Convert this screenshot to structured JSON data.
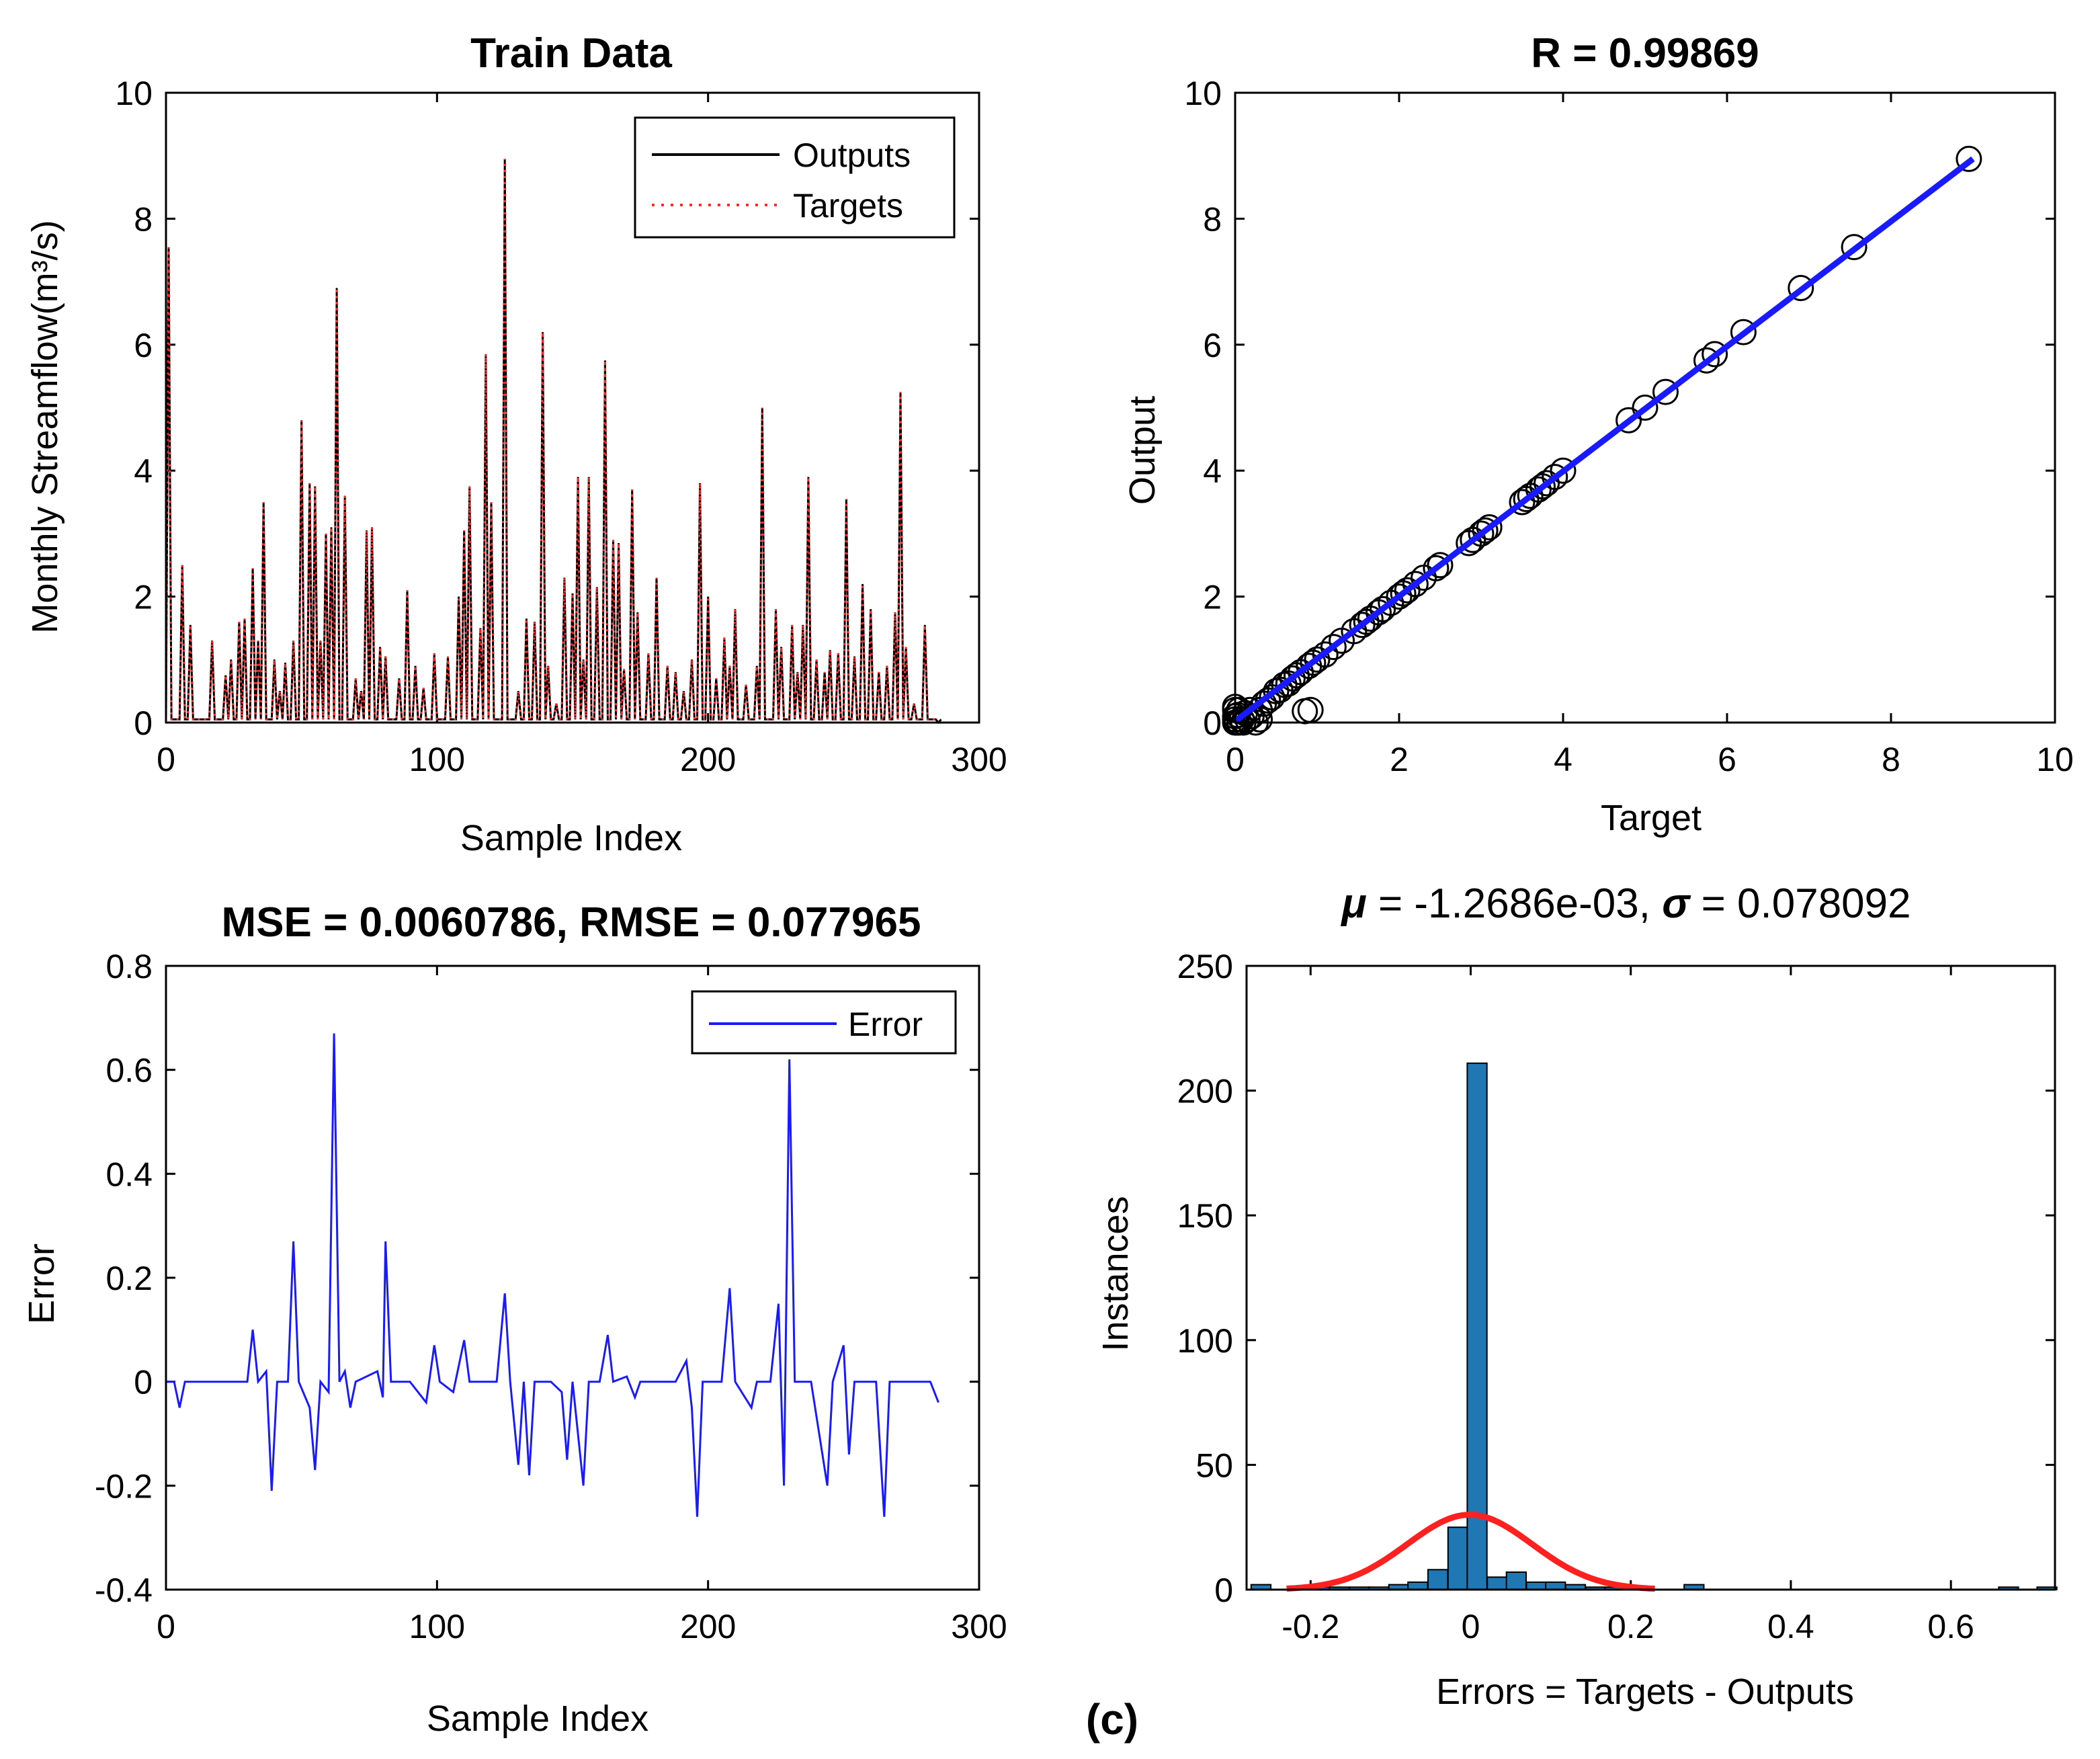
{
  "figure_label": "(c)",
  "chart_data": [
    {
      "id": "train_series",
      "type": "line",
      "title": "Train Data",
      "xlabel": "Sample Index",
      "ylabel": "Monthly Streamflow(m³/s)",
      "xlim": [
        0,
        300
      ],
      "ylim": [
        0,
        10
      ],
      "xticks": [
        0,
        100,
        200,
        300
      ],
      "yticks": [
        0,
        2,
        4,
        6,
        8,
        10
      ],
      "legend": {
        "position": "top-right",
        "entries": [
          "Outputs",
          "Targets"
        ]
      },
      "series": [
        {
          "name": "Outputs",
          "color": "#000000",
          "style": "solid"
        },
        {
          "name": "Targets",
          "color": "#ff2a2a",
          "style": "dotted"
        }
      ],
      "peaks": [
        [
          1,
          7.55
        ],
        [
          6,
          2.5
        ],
        [
          9,
          1.55
        ],
        [
          17,
          1.3
        ],
        [
          22,
          0.75
        ],
        [
          24,
          1.0
        ],
        [
          27,
          1.6
        ],
        [
          29,
          1.65
        ],
        [
          32,
          2.45
        ],
        [
          34,
          1.3
        ],
        [
          36,
          3.5
        ],
        [
          40,
          1.0
        ],
        [
          42,
          0.5
        ],
        [
          44,
          0.95
        ],
        [
          47,
          1.3
        ],
        [
          50,
          4.8
        ],
        [
          53,
          3.8
        ],
        [
          55,
          3.75
        ],
        [
          57,
          1.3
        ],
        [
          59,
          3.0
        ],
        [
          61,
          3.1
        ],
        [
          63,
          6.9
        ],
        [
          66,
          3.6
        ],
        [
          70,
          0.7
        ],
        [
          72,
          0.5
        ],
        [
          74,
          3.05
        ],
        [
          76,
          3.1
        ],
        [
          79,
          1.2
        ],
        [
          81,
          1.05
        ],
        [
          86,
          0.7
        ],
        [
          89,
          2.1
        ],
        [
          92,
          0.9
        ],
        [
          95,
          0.55
        ],
        [
          99,
          1.1
        ],
        [
          104,
          1.05
        ],
        [
          108,
          2.0
        ],
        [
          110,
          3.05
        ],
        [
          112,
          3.75
        ],
        [
          116,
          1.5
        ],
        [
          118,
          5.85
        ],
        [
          120,
          3.5
        ],
        [
          125,
          8.95
        ],
        [
          130,
          0.5
        ],
        [
          133,
          1.65
        ],
        [
          136,
          1.6
        ],
        [
          139,
          6.2
        ],
        [
          141,
          0.9
        ],
        [
          144,
          0.3
        ],
        [
          147,
          2.3
        ],
        [
          150,
          2.05
        ],
        [
          152,
          3.9
        ],
        [
          154,
          1.0
        ],
        [
          156,
          3.9
        ],
        [
          159,
          2.15
        ],
        [
          162,
          5.75
        ],
        [
          165,
          2.9
        ],
        [
          167,
          2.85
        ],
        [
          169,
          0.85
        ],
        [
          172,
          3.7
        ],
        [
          174,
          1.75
        ],
        [
          178,
          1.1
        ],
        [
          181,
          2.3
        ],
        [
          185,
          0.9
        ],
        [
          188,
          0.8
        ],
        [
          191,
          0.5
        ],
        [
          194,
          1.0
        ],
        [
          197,
          3.8
        ],
        [
          200,
          2.0
        ],
        [
          203,
          0.7
        ],
        [
          206,
          1.35
        ],
        [
          208,
          0.9
        ],
        [
          210,
          1.8
        ],
        [
          214,
          0.6
        ],
        [
          218,
          0.9
        ],
        [
          220,
          5.0
        ],
        [
          225,
          1.8
        ],
        [
          227,
          1.2
        ],
        [
          231,
          1.55
        ],
        [
          233,
          0.8
        ],
        [
          235,
          1.55
        ],
        [
          237,
          3.9
        ],
        [
          240,
          1.0
        ],
        [
          243,
          0.8
        ],
        [
          245,
          1.15
        ],
        [
          248,
          1.1
        ],
        [
          251,
          3.55
        ],
        [
          254,
          1.05
        ],
        [
          257,
          2.2
        ],
        [
          260,
          1.8
        ],
        [
          263,
          0.8
        ],
        [
          266,
          0.9
        ],
        [
          269,
          1.75
        ],
        [
          271,
          5.25
        ],
        [
          273,
          1.2
        ],
        [
          276,
          0.3
        ],
        [
          280,
          1.55
        ],
        [
          285,
          0.0
        ]
      ]
    },
    {
      "id": "regression",
      "type": "scatter",
      "title": "R = 0.99869",
      "xlabel": "Target",
      "ylabel": "Output",
      "xlim": [
        0,
        10
      ],
      "ylim": [
        0,
        10
      ],
      "xticks": [
        0,
        2,
        4,
        6,
        8,
        10
      ],
      "yticks": [
        0,
        2,
        4,
        6,
        8,
        10
      ],
      "fit_line": {
        "from": [
          0,
          0.02
        ],
        "to": [
          9.0,
          8.95
        ],
        "color": "#1a1aff"
      },
      "points": [
        [
          0.0,
          0.0
        ],
        [
          0.0,
          0.05
        ],
        [
          0.0,
          0.1
        ],
        [
          0.0,
          0.2
        ],
        [
          0.0,
          0.25
        ],
        [
          0.02,
          0.0
        ],
        [
          0.03,
          0.12
        ],
        [
          0.05,
          0.0
        ],
        [
          0.05,
          0.2
        ],
        [
          0.08,
          0.05
        ],
        [
          0.1,
          0.0
        ],
        [
          0.12,
          0.15
        ],
        [
          0.15,
          0.05
        ],
        [
          0.18,
          0.2
        ],
        [
          0.2,
          0.1
        ],
        [
          0.25,
          0.0
        ],
        [
          0.3,
          0.05
        ],
        [
          0.3,
          0.2
        ],
        [
          0.35,
          0.3
        ],
        [
          0.4,
          0.35
        ],
        [
          0.45,
          0.4
        ],
        [
          0.5,
          0.5
        ],
        [
          0.55,
          0.52
        ],
        [
          0.6,
          0.6
        ],
        [
          0.65,
          0.62
        ],
        [
          0.7,
          0.7
        ],
        [
          0.75,
          0.75
        ],
        [
          0.8,
          0.8
        ],
        [
          0.85,
          0.18
        ],
        [
          0.9,
          0.9
        ],
        [
          0.92,
          0.2
        ],
        [
          0.95,
          0.95
        ],
        [
          1.0,
          1.0
        ],
        [
          1.1,
          1.08
        ],
        [
          1.2,
          1.2
        ],
        [
          1.3,
          1.3
        ],
        [
          1.45,
          1.45
        ],
        [
          1.55,
          1.55
        ],
        [
          1.6,
          1.6
        ],
        [
          1.65,
          1.65
        ],
        [
          1.75,
          1.75
        ],
        [
          1.8,
          1.8
        ],
        [
          1.9,
          1.9
        ],
        [
          2.0,
          2.0
        ],
        [
          2.05,
          2.05
        ],
        [
          2.1,
          2.1
        ],
        [
          2.2,
          2.2
        ],
        [
          2.3,
          2.3
        ],
        [
          2.45,
          2.45
        ],
        [
          2.5,
          2.5
        ],
        [
          2.85,
          2.85
        ],
        [
          2.9,
          2.9
        ],
        [
          3.0,
          3.0
        ],
        [
          3.05,
          3.05
        ],
        [
          3.1,
          3.1
        ],
        [
          3.5,
          3.5
        ],
        [
          3.55,
          3.55
        ],
        [
          3.6,
          3.6
        ],
        [
          3.7,
          3.7
        ],
        [
          3.75,
          3.75
        ],
        [
          3.8,
          3.8
        ],
        [
          3.9,
          3.9
        ],
        [
          4.0,
          4.0
        ],
        [
          4.8,
          4.8
        ],
        [
          5.0,
          5.0
        ],
        [
          5.25,
          5.25
        ],
        [
          5.75,
          5.75
        ],
        [
          5.85,
          5.85
        ],
        [
          6.2,
          6.2
        ],
        [
          6.9,
          6.9
        ],
        [
          7.55,
          7.55
        ],
        [
          8.95,
          8.95
        ]
      ]
    },
    {
      "id": "error_series",
      "type": "line",
      "title": "MSE = 0.0060786, RMSE = 0.077965",
      "xlabel": "Sample Index",
      "ylabel": "Error",
      "xlim": [
        0,
        300
      ],
      "ylim": [
        -0.4,
        0.8
      ],
      "xticks": [
        0,
        100,
        200,
        300
      ],
      "yticks": [
        -0.4,
        -0.2,
        0,
        0.2,
        0.4,
        0.6,
        0.8
      ],
      "legend": {
        "position": "top-right",
        "entries": [
          "Error"
        ]
      },
      "series": [
        {
          "name": "Error",
          "color": "#1a1aff"
        }
      ],
      "points": [
        [
          0,
          0.0
        ],
        [
          3,
          0.0
        ],
        [
          5,
          -0.05
        ],
        [
          7,
          0.0
        ],
        [
          30,
          0.0
        ],
        [
          32,
          0.1
        ],
        [
          34,
          0.0
        ],
        [
          37,
          0.02
        ],
        [
          39,
          -0.21
        ],
        [
          41,
          0.0
        ],
        [
          45,
          0.0
        ],
        [
          47,
          0.27
        ],
        [
          49,
          0.0
        ],
        [
          53,
          -0.05
        ],
        [
          55,
          -0.17
        ],
        [
          57,
          0.0
        ],
        [
          60,
          -0.02
        ],
        [
          62,
          0.67
        ],
        [
          64,
          0.0
        ],
        [
          66,
          0.02
        ],
        [
          68,
          -0.05
        ],
        [
          70,
          0.0
        ],
        [
          78,
          0.02
        ],
        [
          80,
          -0.03
        ],
        [
          81,
          0.27
        ],
        [
          83,
          0.0
        ],
        [
          90,
          0.0
        ],
        [
          96,
          -0.04
        ],
        [
          99,
          0.07
        ],
        [
          101,
          0.0
        ],
        [
          106,
          -0.02
        ],
        [
          110,
          0.08
        ],
        [
          112,
          0.0
        ],
        [
          122,
          0.0
        ],
        [
          125,
          0.17
        ],
        [
          127,
          0.0
        ],
        [
          130,
          -0.16
        ],
        [
          132,
          0.0
        ],
        [
          134,
          -0.18
        ],
        [
          136,
          0.0
        ],
        [
          142,
          0.0
        ],
        [
          146,
          -0.02
        ],
        [
          148,
          -0.15
        ],
        [
          150,
          0.0
        ],
        [
          154,
          -0.2
        ],
        [
          156,
          0.0
        ],
        [
          160,
          0.0
        ],
        [
          163,
          0.09
        ],
        [
          165,
          0.0
        ],
        [
          170,
          0.01
        ],
        [
          173,
          -0.03
        ],
        [
          175,
          0.0
        ],
        [
          188,
          0.0
        ],
        [
          192,
          0.04
        ],
        [
          194,
          -0.05
        ],
        [
          196,
          -0.26
        ],
        [
          198,
          0.0
        ],
        [
          205,
          0.0
        ],
        [
          208,
          0.18
        ],
        [
          210,
          0.0
        ],
        [
          216,
          -0.05
        ],
        [
          218,
          0.0
        ],
        [
          223,
          0.0
        ],
        [
          226,
          0.15
        ],
        [
          228,
          -0.2
        ],
        [
          230,
          0.62
        ],
        [
          232,
          0.0
        ],
        [
          238,
          0.0
        ],
        [
          244,
          -0.2
        ],
        [
          246,
          0.0
        ],
        [
          250,
          0.07
        ],
        [
          252,
          -0.14
        ],
        [
          254,
          0.0
        ],
        [
          262,
          0.0
        ],
        [
          265,
          -0.26
        ],
        [
          267,
          0.0
        ],
        [
          282,
          0.0
        ],
        [
          285,
          -0.04
        ]
      ]
    },
    {
      "id": "error_histogram",
      "type": "bar",
      "title_parts": {
        "mu_symbol": "μ",
        "mu_text": " = -1.2686e-03, ",
        "sigma_symbol": "σ",
        "sigma_text": " = 0.078092"
      },
      "xlabel": "Errors = Targets - Outputs",
      "ylabel": "Instances",
      "xlim": [
        -0.28,
        0.73
      ],
      "ylim": [
        0,
        250
      ],
      "xticks": [
        -0.2,
        0,
        0.2,
        0.4,
        0.6
      ],
      "yticks": [
        0,
        50,
        100,
        150,
        200,
        250
      ],
      "bin_width": 0.0246,
      "bar_color": "#1f77b4",
      "bins": [
        [
          -0.262,
          2
        ],
        [
          -0.213,
          1
        ],
        [
          -0.188,
          1
        ],
        [
          -0.164,
          1
        ],
        [
          -0.139,
          1
        ],
        [
          -0.115,
          1
        ],
        [
          -0.09,
          2
        ],
        [
          -0.066,
          3
        ],
        [
          -0.041,
          8
        ],
        [
          -0.016,
          25
        ],
        [
          0.008,
          211
        ],
        [
          0.033,
          5
        ],
        [
          0.057,
          7
        ],
        [
          0.082,
          3
        ],
        [
          0.106,
          3
        ],
        [
          0.131,
          2
        ],
        [
          0.156,
          1
        ],
        [
          0.18,
          1
        ],
        [
          0.205,
          1
        ],
        [
          0.279,
          2
        ],
        [
          0.672,
          1
        ],
        [
          0.72,
          1
        ]
      ],
      "normal_curve": {
        "mean": -0.0012686,
        "sigma": 0.078092,
        "peak": 30,
        "xrange": [
          -0.23,
          0.23
        ],
        "color": "#ff2020"
      }
    }
  ]
}
